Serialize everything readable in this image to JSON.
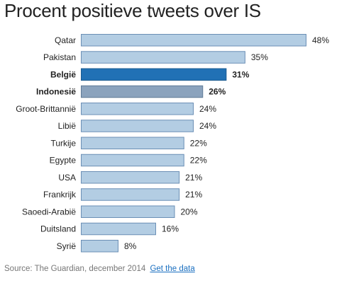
{
  "chart_data": {
    "type": "bar",
    "orientation": "horizontal",
    "title": "Procent positieve tweets over IS",
    "categories": [
      "Qatar",
      "Pakistan",
      "België",
      "Indonesië",
      "Groot-Brittannië",
      "Libië",
      "Turkije",
      "Egypte",
      "USA",
      "Frankrijk",
      "Saoedi-Arabië",
      "Duitsland",
      "Syrië"
    ],
    "values": [
      48,
      35,
      31,
      26,
      24,
      24,
      22,
      22,
      21,
      21,
      20,
      16,
      8
    ],
    "value_labels": [
      "48%",
      "35%",
      "31%",
      "26%",
      "24%",
      "24%",
      "22%",
      "22%",
      "21%",
      "21%",
      "20%",
      "16%",
      "8%"
    ],
    "highlighted": [
      "België",
      "Indonesië"
    ],
    "xlim": [
      0,
      48
    ],
    "grid": false,
    "colors": {
      "default": "#b3cde3",
      "default_stroke": "#6b8fb5",
      "belgie": "#2171b5",
      "belgie_stroke": "#1a5a90",
      "indonesie": "#8ba3bd",
      "indonesie_stroke": "#5f7a96",
      "text": "#222222"
    }
  },
  "footer": {
    "source": "Source: The Guardian, december 2014",
    "link": "Get the data"
  }
}
